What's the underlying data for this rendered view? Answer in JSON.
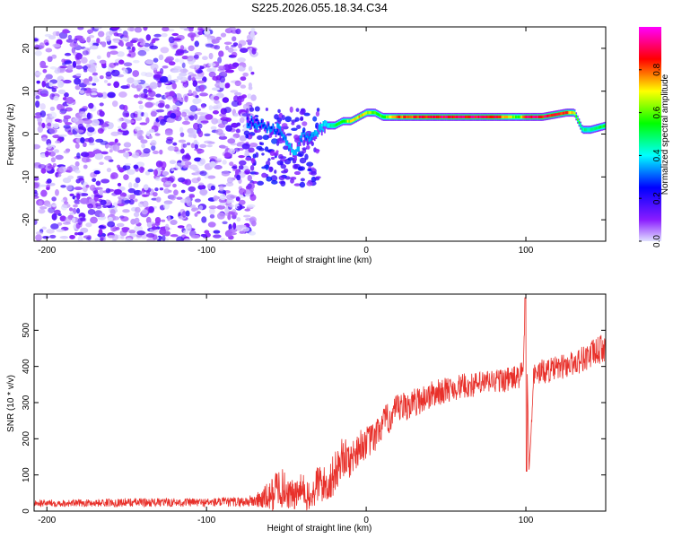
{
  "title": "S225.2026.055.18.34.C34",
  "colors": {
    "series": "#e8302a",
    "axis": "#000000"
  },
  "chart_data": [
    {
      "type": "heatmap",
      "title": "S225.2026.055.18.34.C34",
      "xlabel": "Height of straight line (km)",
      "ylabel": "Frequency (Hz)",
      "xlim": [
        -208,
        150
      ],
      "ylim": [
        -25,
        25
      ],
      "xticks": [
        -200,
        -100,
        0,
        100
      ],
      "yticks": [
        -20,
        -10,
        0,
        10,
        20
      ],
      "colorbar": {
        "label": "Normalized spectral amplitude",
        "range": [
          0,
          1
        ],
        "ticks": [
          "0.0",
          "0.2",
          "0.4",
          "0.6",
          "0.8"
        ],
        "tick_values": [
          0,
          0.2,
          0.4,
          0.6,
          0.8
        ],
        "colormap": [
          "#e0e0ff",
          "#7a00ff",
          "#0000ff",
          "#00ffff",
          "#00ff00",
          "#ffff00",
          "#ff0000",
          "#ff00ff"
        ]
      },
      "noise_region_x": [
        -208,
        -70
      ],
      "ridge": {
        "x": [
          -75,
          -65,
          -55,
          -50,
          -45,
          -40,
          -35,
          -30,
          -25,
          -20,
          -15,
          -10,
          -5,
          0,
          5,
          10,
          20,
          40,
          60,
          80,
          95,
          100,
          110,
          125,
          130,
          135,
          140,
          150
        ],
        "freq": [
          3,
          2,
          1,
          -2,
          -5,
          0,
          -1,
          1,
          2,
          2,
          3,
          3,
          4,
          5,
          5,
          4,
          4,
          4,
          4,
          4,
          4,
          4,
          4,
          5,
          5,
          1,
          1,
          2
        ],
        "amplitude": [
          0.25,
          0.3,
          0.3,
          0.35,
          0.4,
          0.3,
          0.35,
          0.4,
          0.45,
          0.55,
          0.6,
          0.75,
          0.8,
          0.7,
          0.65,
          0.6,
          0.85,
          0.95,
          0.95,
          0.95,
          0.6,
          0.95,
          0.95,
          0.9,
          0.7,
          0.5,
          0.5,
          0.6
        ]
      }
    },
    {
      "type": "line",
      "xlabel": "Height of straight line (km)",
      "ylabel": "SNR (10 * v/v)",
      "xlim": [
        -208,
        150
      ],
      "ylim": [
        0,
        600
      ],
      "xticks": [
        -200,
        -100,
        0,
        100
      ],
      "yticks": [
        0,
        100,
        200,
        300,
        400,
        500
      ],
      "series": [
        {
          "name": "SNR",
          "x": [
            -208,
            -180,
            -150,
            -120,
            -100,
            -80,
            -70,
            -60,
            -55,
            -45,
            -40,
            -35,
            -30,
            -25,
            -20,
            -15,
            -10,
            -5,
            0,
            5,
            10,
            20,
            30,
            40,
            50,
            60,
            70,
            80,
            90,
            95,
            98,
            100,
            102,
            105,
            110,
            120,
            130,
            140,
            150
          ],
          "y": [
            22,
            22,
            24,
            24,
            24,
            25,
            28,
            40,
            70,
            40,
            60,
            30,
            80,
            70,
            100,
            150,
            140,
            175,
            190,
            200,
            240,
            280,
            300,
            320,
            335,
            345,
            350,
            360,
            365,
            370,
            380,
            590,
            110,
            380,
            385,
            395,
            410,
            430,
            455
          ],
          "noise": [
            10,
            10,
            12,
            12,
            12,
            14,
            18,
            45,
            60,
            40,
            50,
            40,
            60,
            50,
            60,
            55,
            50,
            50,
            45,
            45,
            45,
            45,
            40,
            40,
            35,
            35,
            35,
            35,
            35,
            35,
            35,
            0,
            0,
            35,
            35,
            35,
            35,
            40,
            40
          ]
        }
      ]
    }
  ]
}
